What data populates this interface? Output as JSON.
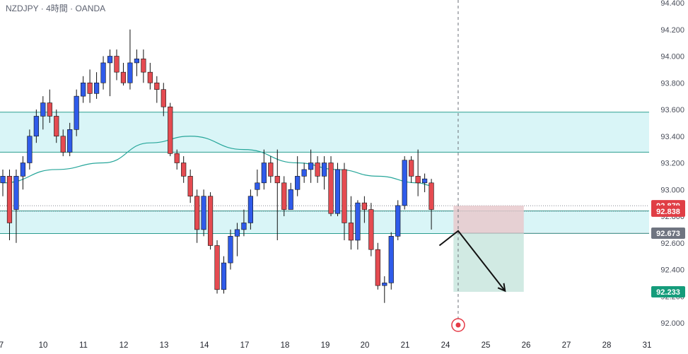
{
  "header": {
    "symbol_label": "NZDJPY · 4時間 · OANDA"
  },
  "colors": {
    "up": "#2f5bea",
    "down": "#e54b51",
    "zone_fill": "#d9f5f7",
    "zone_line": "#2a9d8f",
    "ma_line": "#26a69a",
    "stop_fill": "#e8c9cc",
    "target_fill": "#cfe9e1",
    "badge_red": "#e03e45",
    "badge_gray": "#6f7480",
    "badge_green": "#159c7b",
    "marker": "#e53945"
  },
  "chart_data": {
    "type": "candlestick",
    "ylim": [
      91.95,
      94.45
    ],
    "y_ticks": [
      "94.400",
      "94.200",
      "94.000",
      "93.800",
      "93.600",
      "93.400",
      "93.200",
      "93.000",
      "92.800",
      "92.600",
      "92.400",
      "92.200",
      "92.000"
    ],
    "x_labels": [
      "7",
      "10",
      "11",
      "12",
      "13",
      "14",
      "17",
      "18",
      "19",
      "20",
      "21",
      "24",
      "25",
      "26",
      "27",
      "28",
      "31"
    ],
    "candles": [
      [
        0,
        93.05,
        93.1,
        92.95,
        93.15
      ],
      [
        1,
        93.1,
        92.75,
        92.62,
        93.15
      ],
      [
        2,
        92.85,
        93.1,
        92.6,
        93.15
      ],
      [
        3,
        93.1,
        93.2,
        93.0,
        93.25
      ],
      [
        4,
        93.2,
        93.4,
        93.15,
        93.45
      ],
      [
        5,
        93.4,
        93.55,
        93.35,
        93.6
      ],
      [
        6,
        93.55,
        93.65,
        93.45,
        93.7
      ],
      [
        7,
        93.65,
        93.55,
        93.5,
        93.75
      ],
      [
        8,
        93.55,
        93.4,
        93.35,
        93.6
      ],
      [
        9,
        93.4,
        93.28,
        93.25,
        93.45
      ],
      [
        10,
        93.28,
        93.45,
        93.25,
        93.5
      ],
      [
        11,
        93.45,
        93.7,
        93.4,
        93.75
      ],
      [
        12,
        93.7,
        93.8,
        93.65,
        93.85
      ],
      [
        13,
        93.8,
        93.72,
        93.65,
        93.9
      ],
      [
        14,
        93.72,
        93.8,
        93.68,
        93.88
      ],
      [
        15,
        93.8,
        93.95,
        93.75,
        94.0
      ],
      [
        16,
        93.95,
        94.0,
        93.7,
        94.05
      ],
      [
        17,
        94.0,
        93.88,
        93.82,
        94.05
      ],
      [
        18,
        93.88,
        93.8,
        93.78,
        93.95
      ],
      [
        19,
        93.8,
        93.95,
        93.75,
        94.2
      ],
      [
        20,
        93.95,
        93.98,
        93.85,
        94.05
      ],
      [
        21,
        93.98,
        93.88,
        93.8,
        94.05
      ],
      [
        22,
        93.88,
        93.8,
        93.75,
        93.95
      ],
      [
        23,
        93.8,
        93.75,
        93.65,
        93.85
      ],
      [
        24,
        93.75,
        93.62,
        93.55,
        93.8
      ],
      [
        25,
        93.62,
        93.27,
        93.25,
        93.65
      ],
      [
        26,
        93.27,
        93.2,
        93.15,
        93.3
      ],
      [
        27,
        93.2,
        93.1,
        93.05,
        93.25
      ],
      [
        28,
        93.1,
        92.95,
        92.9,
        93.15
      ],
      [
        29,
        92.95,
        92.7,
        92.6,
        93.0
      ],
      [
        30,
        92.7,
        92.95,
        92.65,
        93.0
      ],
      [
        31,
        92.95,
        92.58,
        92.55,
        92.98
      ],
      [
        32,
        92.58,
        92.25,
        92.22,
        92.62
      ],
      [
        33,
        92.25,
        92.45,
        92.22,
        92.5
      ],
      [
        34,
        92.45,
        92.65,
        92.4,
        92.7
      ],
      [
        35,
        92.65,
        92.7,
        92.5,
        92.75
      ],
      [
        36,
        92.7,
        92.75,
        92.65,
        92.85
      ],
      [
        37,
        92.75,
        92.95,
        92.7,
        93.0
      ],
      [
        38,
        93.0,
        93.05,
        92.95,
        93.15
      ],
      [
        39,
        93.05,
        93.2,
        93.0,
        93.3
      ],
      [
        40,
        93.2,
        93.1,
        93.05,
        93.25
      ],
      [
        41,
        93.1,
        93.05,
        92.62,
        93.3
      ],
      [
        42,
        93.05,
        92.85,
        92.8,
        93.1
      ],
      [
        43,
        92.85,
        93.0,
        92.85,
        93.05
      ],
      [
        44,
        93.0,
        93.1,
        92.95,
        93.25
      ],
      [
        45,
        93.1,
        93.15,
        93.05,
        93.2
      ],
      [
        46,
        93.15,
        93.2,
        93.05,
        93.3
      ],
      [
        47,
        93.2,
        93.1,
        93.05,
        93.25
      ],
      [
        48,
        93.1,
        93.2,
        93.0,
        93.25
      ],
      [
        49,
        93.2,
        92.82,
        92.8,
        93.25
      ],
      [
        50,
        92.82,
        93.15,
        92.8,
        93.2
      ],
      [
        51,
        93.15,
        92.75,
        92.62,
        93.2
      ],
      [
        52,
        92.75,
        92.62,
        92.55,
        92.95
      ],
      [
        53,
        92.62,
        92.9,
        92.55,
        92.92
      ],
      [
        54,
        92.9,
        92.85,
        92.75,
        92.95
      ],
      [
        55,
        92.85,
        92.55,
        92.5,
        92.9
      ],
      [
        56,
        92.55,
        92.28,
        92.25,
        92.6
      ],
      [
        57,
        92.28,
        92.3,
        92.15,
        92.35
      ],
      [
        58,
        92.3,
        92.65,
        92.25,
        92.68
      ],
      [
        59,
        92.65,
        92.88,
        92.62,
        92.92
      ],
      [
        60,
        92.88,
        93.22,
        92.85,
        93.25
      ],
      [
        61,
        93.22,
        93.1,
        93.05,
        93.25
      ],
      [
        62,
        93.1,
        93.05,
        92.95,
        93.3
      ],
      [
        63,
        93.05,
        93.08,
        92.98,
        93.12
      ],
      [
        64,
        93.05,
        92.85,
        92.7,
        93.08
      ]
    ],
    "ma": [
      [
        0,
        93.05
      ],
      [
        8,
        93.15
      ],
      [
        15,
        93.2
      ],
      [
        22,
        93.35
      ],
      [
        28,
        93.4
      ],
      [
        36,
        93.3
      ],
      [
        44,
        93.2
      ],
      [
        50,
        93.15
      ],
      [
        56,
        93.1
      ],
      [
        62,
        93.05
      ],
      [
        64,
        93.03
      ]
    ],
    "zones": [
      [
        93.28,
        93.58
      ],
      [
        92.67,
        92.84
      ]
    ],
    "ref_levels": [
      92.879,
      92.838
    ],
    "position": {
      "entry": 92.673,
      "stop": 92.879,
      "target": 92.233,
      "bar_start": 67.3,
      "bar_end": 77.8
    },
    "arrow_path": [
      [
        65.2,
        92.58
      ],
      [
        68.0,
        92.69
      ],
      [
        75.0,
        92.24
      ]
    ],
    "cursor_bar": 68,
    "price_badges": [
      {
        "value": "92.879",
        "price": 92.879,
        "color": "badge_red"
      },
      {
        "value": "92.838",
        "price": 92.838,
        "color": "badge_red"
      },
      {
        "value": "92.673",
        "price": 92.673,
        "color": "badge_gray"
      },
      {
        "value": "92.233",
        "price": 92.233,
        "color": "badge_green"
      }
    ]
  }
}
